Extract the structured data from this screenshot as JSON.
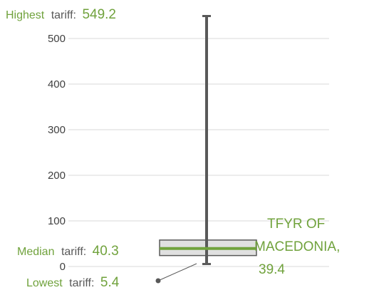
{
  "chart_data": {
    "type": "boxplot",
    "y_ticks": [
      0,
      100,
      200,
      300,
      400,
      500
    ],
    "ylim": [
      0,
      560
    ],
    "grid": true,
    "whisker_low": 5.4,
    "whisker_high": 549.2,
    "box_low": 24,
    "box_high": 58,
    "median": 40.3,
    "highlight": {
      "label_line1": "TFYR OF",
      "label_line2": "MACEDONIA,",
      "label_value": "39.4",
      "value": 39.4
    },
    "annotations": {
      "highest_word": "Highest",
      "highest_rest": "tariff:",
      "highest_value": "549.2",
      "median_word": "Median",
      "median_rest": "tariff:",
      "median_value": "40.3",
      "lowest_word": "Lowest",
      "lowest_rest": "tariff:",
      "lowest_value": "5.4"
    },
    "colors": {
      "accent": "#70a23c",
      "whisker": "#595959",
      "grid": "#d9d9d9",
      "box_fill": "#e0e0e0",
      "box_stroke": "#595959",
      "label_gray": "#595959"
    }
  }
}
